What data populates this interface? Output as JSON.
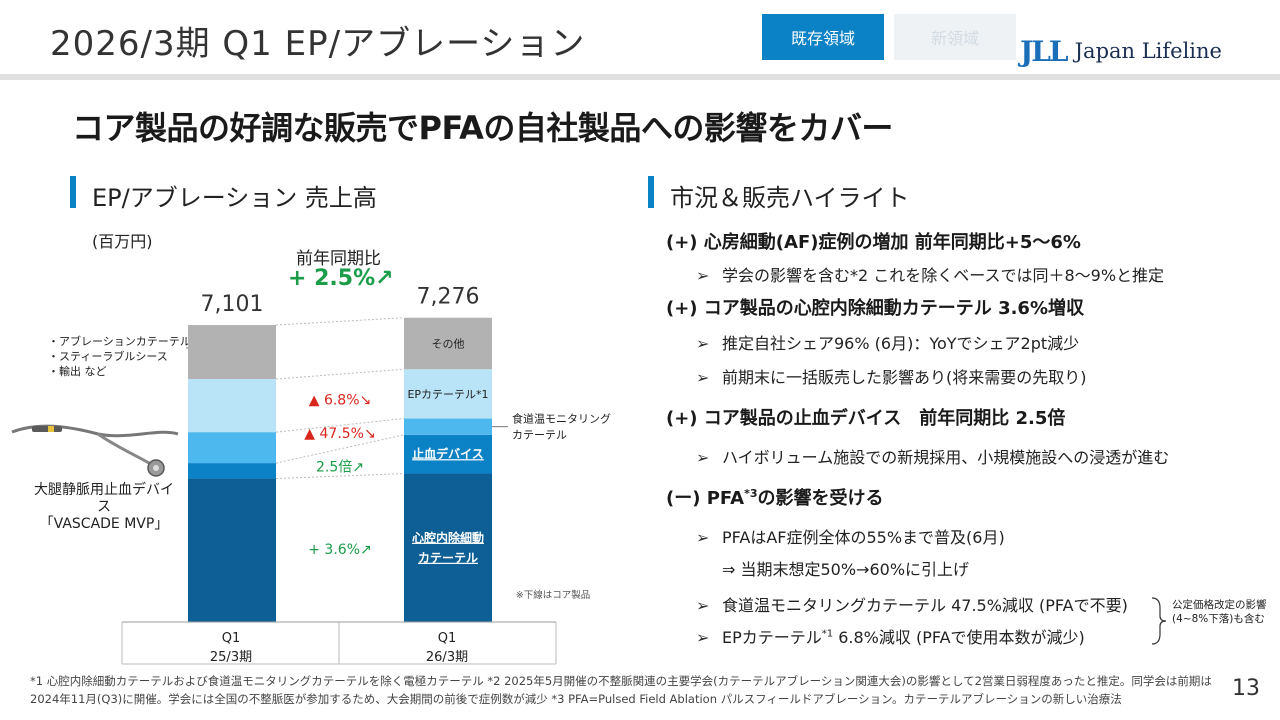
{
  "header": {
    "title": "2026/3期 Q1 EP/アブレーション",
    "tag_existing": "既存領域",
    "tag_new": "新領域",
    "logo_mark": "JLL",
    "logo_text": "Japan Lifeline"
  },
  "headline": "コア製品の好調な販売でPFAの自社製品への影響をカバー",
  "left_section": {
    "title": "EP/アブレーション 売上高",
    "unit": "(百万円)",
    "yoy_label": "前年同期比",
    "yoy_value": "+ 2.5%↗",
    "bullets": [
      "・アブレーションカテーテル",
      "・スティーラブルシース",
      "・輸出 など"
    ],
    "device_label_1": "大腿静脈用止血デバイス",
    "device_label_2": "「VASCADE MVP」",
    "core_note": "※下線はコア製品",
    "side_label_1": "食道温モニタリング",
    "side_label_2": "カテーテル"
  },
  "chart_data": {
    "type": "bar",
    "stacked": true,
    "unit": "百万円",
    "categories": [
      "Q1 25/3期",
      "Q1 26/3期"
    ],
    "category_lines": [
      [
        "Q1",
        "25/3期"
      ],
      [
        "Q1",
        "26/3期"
      ]
    ],
    "totals": [
      7101,
      7276
    ],
    "total_labels": [
      "7,101",
      "7,276"
    ],
    "series": [
      {
        "name": "心腔内除細動カテーテル",
        "label_lines": [
          "心腔内除細動",
          "カテーテル"
        ],
        "values": [
          3430,
          3550
        ],
        "color": "#0d5f95",
        "text_color": "#ffffff",
        "underline": true
      },
      {
        "name": "止血デバイス",
        "label_lines": [
          "止血デバイス"
        ],
        "values": [
          370,
          925
        ],
        "color": "#0b82c6",
        "text_color": "#ffffff",
        "underline": true
      },
      {
        "name": "食道温モニタリングカテーテル",
        "label_lines": [
          ""
        ],
        "values": [
          740,
          390
        ],
        "color": "#4db8ee",
        "text_color": "#222222",
        "underline": false
      },
      {
        "name": "EPカテーテル*1",
        "label_lines": [
          "EPカテーテル*1"
        ],
        "values": [
          1270,
          1180
        ],
        "color": "#b9e4f8",
        "text_color": "#222222",
        "underline": false
      },
      {
        "name": "その他",
        "label_lines": [
          "その他"
        ],
        "values": [
          1291,
          1231
        ],
        "color": "#b2b2b2",
        "text_color": "#222222",
        "underline": false
      }
    ],
    "change_labels": [
      {
        "text": "▲ 6.8%↘",
        "series": "EPカテーテル*1",
        "color": "#d9261c"
      },
      {
        "text": "▲ 47.5%↘",
        "series": "食道温モニタリングカテーテル",
        "color": "#d9261c"
      },
      {
        "text": "2.5倍↗",
        "series": "止血デバイス",
        "color": "#1a9c48"
      },
      {
        "text": "+ 3.6%↗",
        "series": "心腔内除細動カテーテル",
        "color": "#1a9c48"
      }
    ],
    "ylim": [
      0,
      7700
    ]
  },
  "right_section": {
    "title": "市況＆販売ハイライト",
    "h1": "(+) 心房細動(AF)症例の増加 前年同期比+5～6%",
    "h1_s1": "学会の影響を含む*2 これを除くベースでは同＋8～9%と推定",
    "h2": "(+) コア製品の心腔内除細動カテーテル 3.6%増収",
    "h2_s1": "推定自社シェア96% (6月)：YoYでシェア2pt減少",
    "h2_s2": "前期末に一括販売した影響あり(将来需要の先取り)",
    "h3": "(+) コア製品の止血デバイス　前年同期比 2.5倍",
    "h3_s1": "ハイボリューム施設での新規採用、小規模施設への浸透が進む",
    "h4_pre": "(ー) PFA",
    "h4_sup": "*3",
    "h4_post": "の影響を受ける",
    "h4_s1": "PFAはAF症例全体の55%まで普及(6月)",
    "h4_s1b": "⇒ 当期末想定50%→60%に引上げ",
    "h4_s2": "食道温モニタリングカテーテル 47.5%減収 (PFAで不要)",
    "h4_s3_pre": "EPカテーテル",
    "h4_s3_sup": "*1",
    "h4_s3_post": " 6.8%減収 (PFAで使用本数が減少)",
    "brace_note": "公定価格改定の影響(4~8%下落)も含む",
    "arrow": "➢"
  },
  "footnote": "*1 心腔内除細動カテーテルおよび食道温モニタリングカテーテルを除く電極カテーテル *2 2025年5月開催の不整脈関連の主要学会(カテーテルアブレーション関連大会)の影響として2営業日弱程度あったと推定。同学会は前期は2024年11月(Q3)に開催。学会には全国の不整脈医が参加するため、大会期間の前後で症例数が減少 *3 PFA=Pulsed Field Ablation パルスフィールドアブレーション。カテーテルアブレーションの新しい治療法",
  "page_number": "13"
}
